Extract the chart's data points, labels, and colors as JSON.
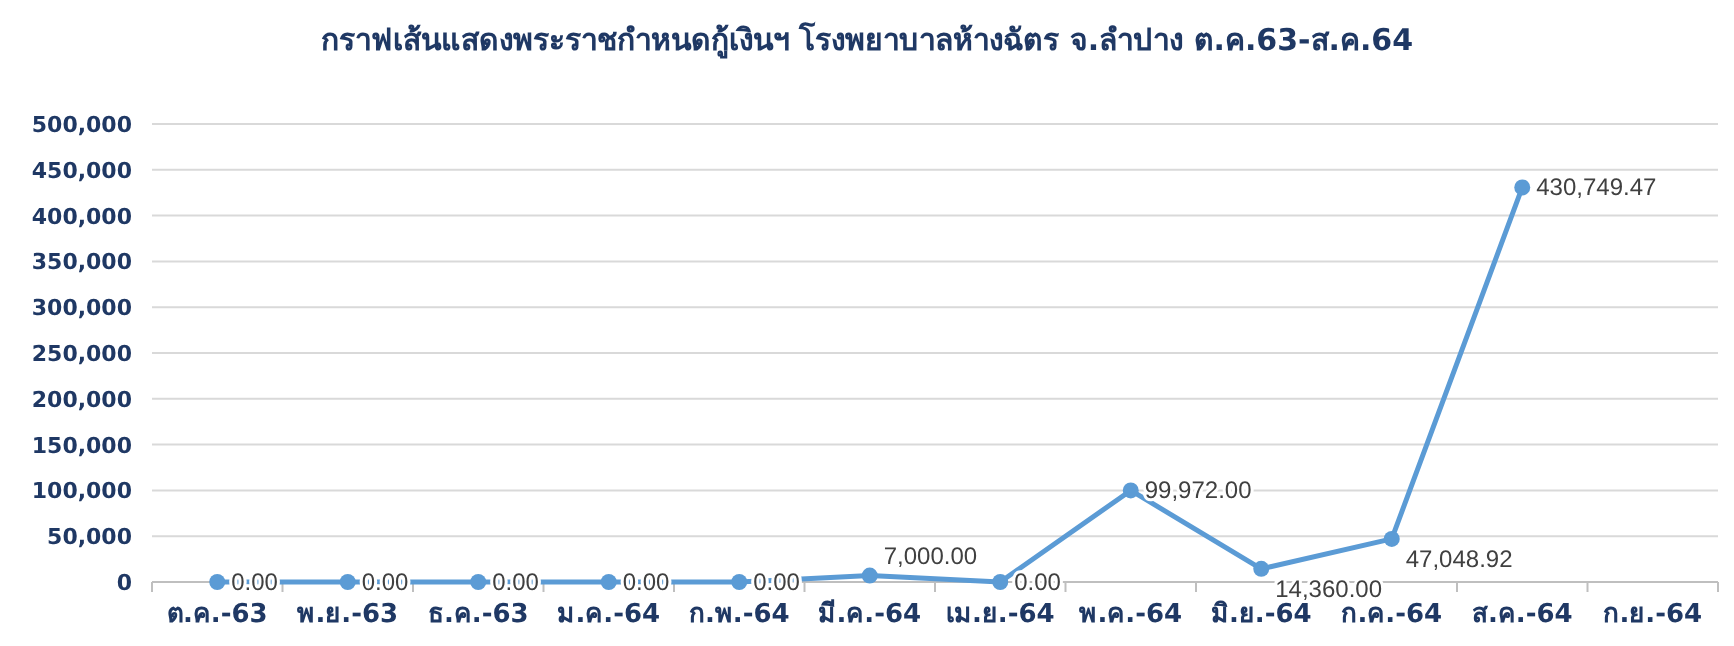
{
  "chart_data": {
    "type": "line",
    "title": "กราฟเส้นแสดงพระราชกำหนดกู้เงินฯ โรงพยาบาลห้างฉัตร จ.ลำปาง ต.ค.63-ส.ค.64",
    "categories": [
      "ต.ค.-63",
      "พ.ย.-63",
      "ธ.ค.-63",
      "ม.ค.-64",
      "ก.พ.-64",
      "มี.ค.-64",
      "เม.ย.-64",
      "พ.ค.-64",
      "มิ.ย.-64",
      "ก.ค.-64",
      "ส.ค.-64",
      "ก.ย.-64"
    ],
    "series": [
      {
        "color": "#5b9bd5",
        "values": [
          0,
          0,
          0,
          0,
          0,
          7000,
          0,
          99972,
          14360,
          47048.92,
          430749.47,
          null
        ],
        "value_labels": [
          "0.00",
          "0.00",
          "0.00",
          "0.00",
          "0.00",
          "7,000.00",
          "0.00",
          "99,972.00",
          "14,360.00",
          "47,048.92",
          "430,749.47",
          null
        ]
      }
    ],
    "ylim": [
      0,
      500000
    ],
    "yticks": [
      {
        "value": 0,
        "label": "0"
      },
      {
        "value": 50000,
        "label": "50,000"
      },
      {
        "value": 100000,
        "label": "100,000"
      },
      {
        "value": 150000,
        "label": "150,000"
      },
      {
        "value": 200000,
        "label": "200,000"
      },
      {
        "value": 250000,
        "label": "250,000"
      },
      {
        "value": 300000,
        "label": "300,000"
      },
      {
        "value": 350000,
        "label": "350,000"
      },
      {
        "value": 400000,
        "label": "400,000"
      },
      {
        "value": 450000,
        "label": "450,000"
      },
      {
        "value": 500000,
        "label": "500,000"
      }
    ],
    "grid": "y",
    "marker": "circle",
    "line_style": "solid"
  }
}
